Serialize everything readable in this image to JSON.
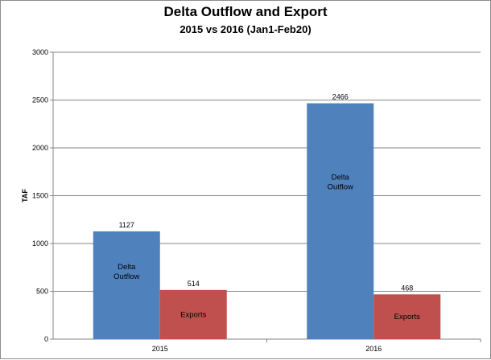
{
  "chart_data": {
    "type": "bar",
    "title": "Delta Outflow and Export",
    "subtitle": "2015 vs 2016 (Jan1-Feb20)",
    "xlabel": "",
    "ylabel": "TAF",
    "ylim": [
      0,
      3000
    ],
    "yticks": [
      0,
      500,
      1000,
      1500,
      2000,
      2500,
      3000
    ],
    "categories": [
      "2015",
      "2016"
    ],
    "grid": true,
    "series": [
      {
        "bar_label_lines": [
          "Delta",
          "Outflow"
        ],
        "color": "#4f81bd",
        "values": [
          1127,
          2466
        ]
      },
      {
        "bar_label_lines": [
          "Exports"
        ],
        "color": "#c0504d",
        "values": [
          514,
          468
        ]
      }
    ]
  }
}
